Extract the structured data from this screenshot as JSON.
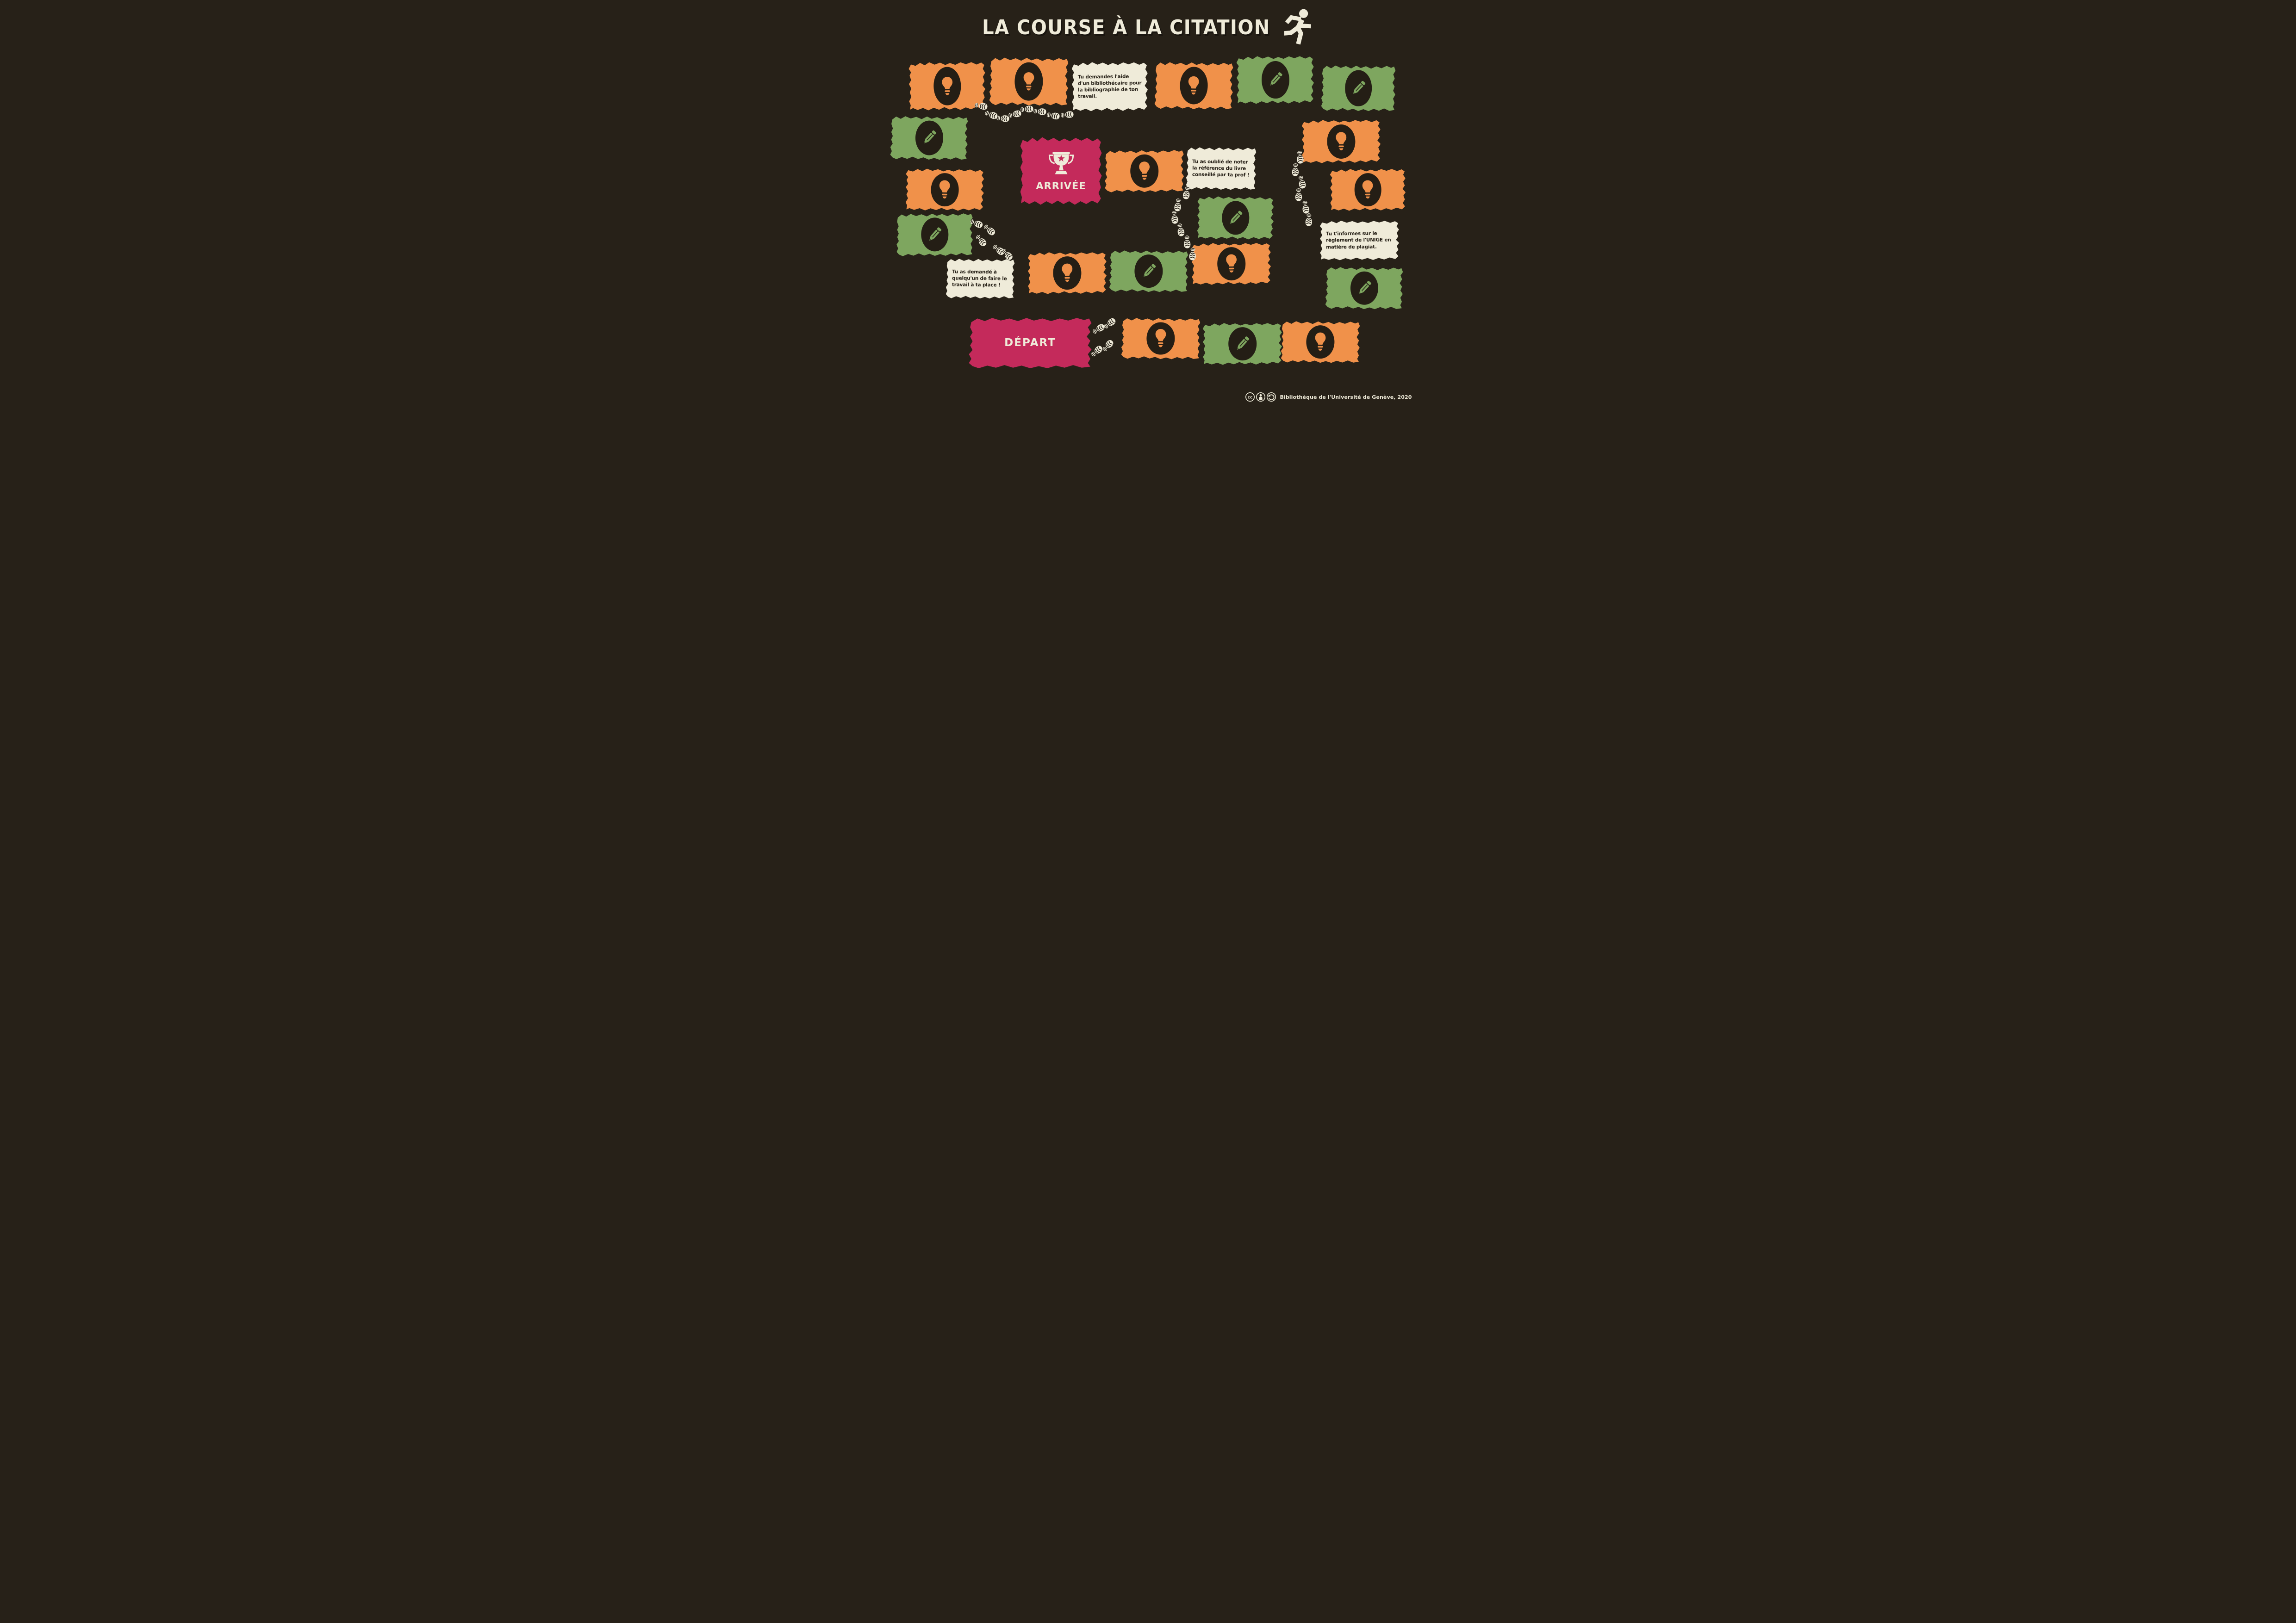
{
  "title": "LA COURSE À LA CITATION",
  "header_icon": "runner-icon",
  "board": {
    "start_label": "DÉPART",
    "finish_label": "ARRIVÉE",
    "notes": [
      {
        "text": "Tu demandes l'aide d'un bibliothécaire pour la bibliographie de ton travail."
      },
      {
        "text": "Tu as oublié de noter la référence du livre conseillé par ta prof !"
      },
      {
        "text": "Tu t'informes sur le règlement de l'UNIGE en matière de plagiat."
      },
      {
        "text": "Tu as demandé à quelqu'un de faire le travail à ta place !"
      }
    ],
    "tiles": [
      {
        "kind": "idea-lightbulb"
      },
      {
        "kind": "idea-lightbulb"
      },
      {
        "kind": "note",
        "note_index": 0
      },
      {
        "kind": "idea-lightbulb"
      },
      {
        "kind": "write-pencil"
      },
      {
        "kind": "write-pencil"
      },
      {
        "kind": "write-pencil"
      },
      {
        "kind": "idea-lightbulb"
      },
      {
        "kind": "idea-lightbulb"
      },
      {
        "kind": "finish"
      },
      {
        "kind": "idea-lightbulb"
      },
      {
        "kind": "note",
        "note_index": 1
      },
      {
        "kind": "idea-lightbulb"
      },
      {
        "kind": "write-pencil"
      },
      {
        "kind": "write-pencil"
      },
      {
        "kind": "note",
        "note_index": 2
      },
      {
        "kind": "note",
        "note_index": 3
      },
      {
        "kind": "idea-lightbulb"
      },
      {
        "kind": "write-pencil"
      },
      {
        "kind": "idea-lightbulb"
      },
      {
        "kind": "write-pencil"
      },
      {
        "kind": "start"
      },
      {
        "kind": "idea-lightbulb"
      },
      {
        "kind": "write-pencil"
      },
      {
        "kind": "idea-lightbulb"
      }
    ]
  },
  "footer": {
    "cc_glyph": "cc",
    "license_icons": [
      "cc-icon",
      "attribution-icon",
      "share-alike-icon"
    ],
    "credit": "Bibliothèque de l'Université de Genève, 2020"
  },
  "colors": {
    "background": "#272118",
    "orange": "#F0914A",
    "green": "#7EA65F",
    "pink": "#C42A5B",
    "cream": "#EFEBD9"
  }
}
